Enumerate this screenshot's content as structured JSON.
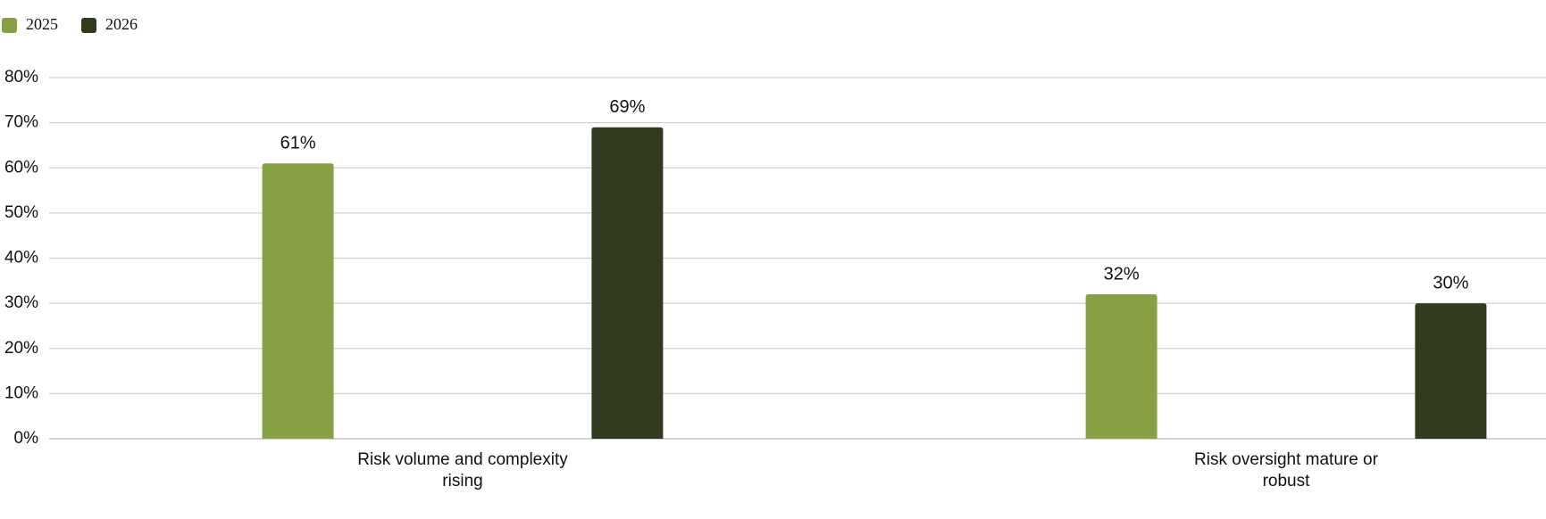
{
  "chart_data": {
    "type": "bar",
    "categories": [
      "Risk volume and complexity rising",
      "Risk oversight mature or robust"
    ],
    "series": [
      {
        "name": "2025",
        "color": "#87a043",
        "values": [
          61,
          32
        ],
        "value_labels": [
          "61%",
          "32%"
        ]
      },
      {
        "name": "2026",
        "color": "#323b20",
        "values": [
          69,
          30
        ],
        "value_labels": [
          "69%",
          "30%"
        ]
      }
    ],
    "ylim": [
      0,
      80
    ],
    "yticks": [
      {
        "value": 0,
        "label": "0%"
      },
      {
        "value": 10,
        "label": "10%"
      },
      {
        "value": 20,
        "label": "20%"
      },
      {
        "value": 30,
        "label": "30%"
      },
      {
        "value": 40,
        "label": "40%"
      },
      {
        "value": 50,
        "label": "50%"
      },
      {
        "value": 60,
        "label": "60%"
      },
      {
        "value": 70,
        "label": "70%"
      },
      {
        "value": 80,
        "label": "80%"
      }
    ],
    "grid": true
  }
}
